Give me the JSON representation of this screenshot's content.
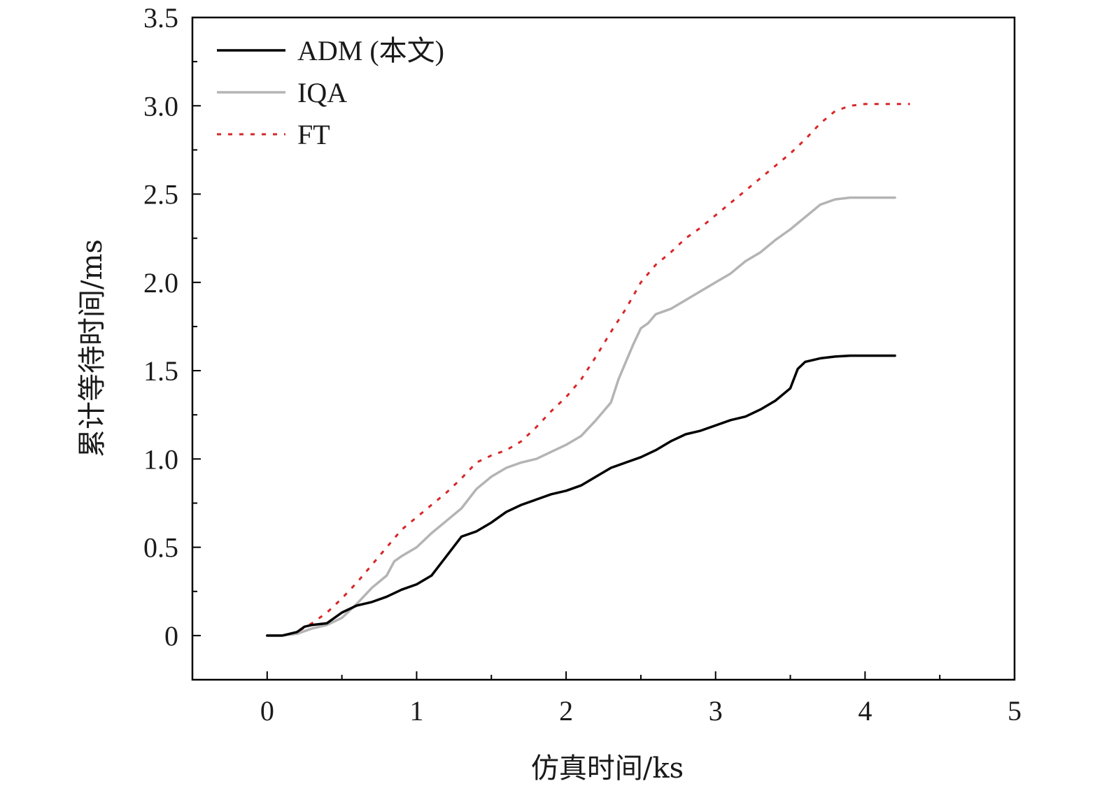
{
  "chart_data": {
    "type": "line",
    "xlabel": "仿真时间/ks",
    "ylabel": "累计等待时间/ms",
    "xlim": [
      -0.5,
      5
    ],
    "ylim": [
      -0.25,
      3.5
    ],
    "xticks": [
      0,
      1,
      2,
      3,
      4,
      5
    ],
    "xtick_labels": [
      "0",
      "1",
      "2",
      "3",
      "4",
      "5"
    ],
    "yticks": [
      0,
      0.5,
      1.0,
      1.5,
      2.0,
      2.5,
      3.0,
      3.5
    ],
    "ytick_labels": [
      "0",
      "0.5",
      "1.0",
      "1.5",
      "2.0",
      "2.5",
      "3.0",
      "3.5"
    ],
    "grid": false,
    "legend_position": "top-left",
    "series": [
      {
        "name": "ADM (本文)",
        "color": "#000000",
        "style": "solid",
        "x": [
          0,
          0.1,
          0.2,
          0.25,
          0.3,
          0.4,
          0.5,
          0.6,
          0.7,
          0.8,
          0.9,
          1.0,
          1.1,
          1.2,
          1.3,
          1.4,
          1.5,
          1.6,
          1.7,
          1.8,
          1.9,
          2.0,
          2.1,
          2.2,
          2.3,
          2.4,
          2.5,
          2.6,
          2.7,
          2.8,
          2.9,
          3.0,
          3.1,
          3.2,
          3.3,
          3.4,
          3.5,
          3.55,
          3.6,
          3.7,
          3.8,
          3.9,
          4.0,
          4.1,
          4.2
        ],
        "y": [
          0,
          0,
          0.02,
          0.05,
          0.06,
          0.07,
          0.13,
          0.17,
          0.19,
          0.22,
          0.26,
          0.29,
          0.34,
          0.45,
          0.56,
          0.59,
          0.64,
          0.7,
          0.74,
          0.77,
          0.8,
          0.82,
          0.85,
          0.9,
          0.95,
          0.98,
          1.01,
          1.05,
          1.1,
          1.14,
          1.16,
          1.19,
          1.22,
          1.24,
          1.28,
          1.33,
          1.4,
          1.51,
          1.55,
          1.57,
          1.58,
          1.585,
          1.585,
          1.585,
          1.585
        ]
      },
      {
        "name": "IQA",
        "color": "#b4b4b4",
        "style": "solid",
        "x": [
          0,
          0.1,
          0.2,
          0.3,
          0.4,
          0.5,
          0.6,
          0.7,
          0.8,
          0.85,
          0.9,
          1.0,
          1.1,
          1.2,
          1.3,
          1.4,
          1.5,
          1.6,
          1.7,
          1.8,
          1.9,
          2.0,
          2.1,
          2.2,
          2.3,
          2.35,
          2.4,
          2.45,
          2.5,
          2.55,
          2.6,
          2.7,
          2.8,
          2.9,
          3.0,
          3.1,
          3.2,
          3.3,
          3.4,
          3.5,
          3.6,
          3.7,
          3.8,
          3.9,
          4.0,
          4.1,
          4.2
        ],
        "y": [
          0,
          0,
          0.01,
          0.04,
          0.06,
          0.1,
          0.18,
          0.27,
          0.34,
          0.42,
          0.45,
          0.5,
          0.58,
          0.65,
          0.72,
          0.83,
          0.9,
          0.95,
          0.98,
          1.0,
          1.04,
          1.08,
          1.13,
          1.22,
          1.32,
          1.45,
          1.55,
          1.65,
          1.74,
          1.77,
          1.82,
          1.85,
          1.9,
          1.95,
          2.0,
          2.05,
          2.12,
          2.17,
          2.24,
          2.3,
          2.37,
          2.44,
          2.47,
          2.48,
          2.48,
          2.48,
          2.48
        ]
      },
      {
        "name": "FT",
        "color": "#d62728",
        "style": "dotted",
        "x": [
          0,
          0.1,
          0.2,
          0.3,
          0.4,
          0.5,
          0.6,
          0.7,
          0.8,
          0.9,
          1.0,
          1.1,
          1.2,
          1.3,
          1.4,
          1.5,
          1.6,
          1.7,
          1.8,
          1.9,
          2.0,
          2.1,
          2.2,
          2.3,
          2.4,
          2.5,
          2.6,
          2.7,
          2.8,
          2.9,
          3.0,
          3.1,
          3.2,
          3.3,
          3.4,
          3.5,
          3.6,
          3.7,
          3.8,
          3.9,
          4.0,
          4.1,
          4.2,
          4.3
        ],
        "y": [
          0,
          0,
          0.02,
          0.07,
          0.13,
          0.21,
          0.3,
          0.4,
          0.5,
          0.6,
          0.67,
          0.74,
          0.81,
          0.89,
          0.98,
          1.02,
          1.05,
          1.1,
          1.18,
          1.27,
          1.35,
          1.45,
          1.58,
          1.72,
          1.85,
          2.0,
          2.1,
          2.17,
          2.25,
          2.31,
          2.38,
          2.45,
          2.52,
          2.59,
          2.66,
          2.73,
          2.81,
          2.9,
          2.97,
          3.0,
          3.01,
          3.01,
          3.01,
          3.01
        ]
      }
    ]
  }
}
